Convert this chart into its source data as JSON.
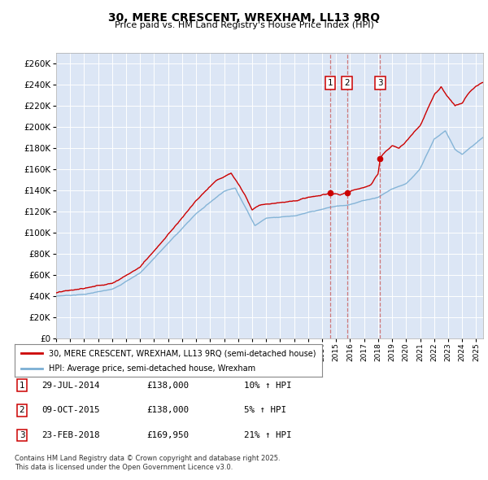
{
  "title": "30, MERE CRESCENT, WREXHAM, LL13 9RQ",
  "subtitle": "Price paid vs. HM Land Registry's House Price Index (HPI)",
  "ylim": [
    0,
    270000
  ],
  "yticks": [
    0,
    20000,
    40000,
    60000,
    80000,
    100000,
    120000,
    140000,
    160000,
    180000,
    200000,
    220000,
    240000,
    260000
  ],
  "plot_bg": "#dce6f5",
  "legend_entries": [
    "30, MERE CRESCENT, WREXHAM, LL13 9RQ (semi-detached house)",
    "HPI: Average price, semi-detached house, Wrexham"
  ],
  "legend_colors": [
    "#cc0000",
    "#6699cc"
  ],
  "transactions": [
    {
      "num": 1,
      "date": "29-JUL-2014",
      "price": "£138,000",
      "hpi_rel": "10% ↑ HPI",
      "x_year": 2014.57,
      "y_val": 138000
    },
    {
      "num": 2,
      "date": "09-OCT-2015",
      "price": "£138,000",
      "hpi_rel": "5% ↑ HPI",
      "x_year": 2015.77,
      "y_val": 138000
    },
    {
      "num": 3,
      "date": "23-FEB-2018",
      "price": "£169,950",
      "hpi_rel": "21% ↑ HPI",
      "x_year": 2018.15,
      "y_val": 169950
    }
  ],
  "footer1": "Contains HM Land Registry data © Crown copyright and database right 2025.",
  "footer2": "This data is licensed under the Open Government Licence v3.0.",
  "xmin": 1995,
  "xmax": 2025.5,
  "red_color": "#cc0000",
  "blue_color": "#7bafd4"
}
